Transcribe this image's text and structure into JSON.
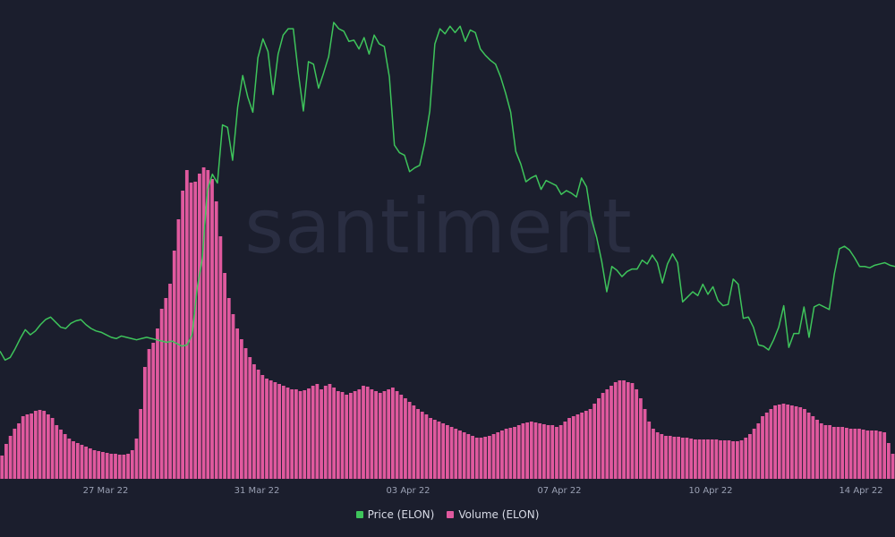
{
  "chart_data": {
    "type": "line+bar",
    "title": "",
    "watermark": "santiment",
    "x_ticks": [
      "27 Mar 22",
      "31 Mar 22",
      "03 Apr 22",
      "07 Apr 22",
      "10 Apr 22",
      "14 Apr 22"
    ],
    "x_range": [
      "24 Mar 22",
      "15 Apr 22"
    ],
    "grid": false,
    "legend_position": "bottom-center",
    "colors": {
      "background": "#1b1e2d",
      "price": "#3ec45b",
      "volume": "#e0599e"
    },
    "series": [
      {
        "name": "Price (ELON)",
        "kind": "line",
        "scale": "relative",
        "values": [
          45,
          38,
          40,
          47,
          55,
          62,
          58,
          61,
          66,
          70,
          72,
          68,
          64,
          63,
          67,
          69,
          70,
          66,
          63,
          61,
          60,
          58,
          56,
          55,
          57,
          56,
          55,
          54,
          55,
          56,
          55,
          54,
          53,
          52,
          53,
          51,
          49,
          50,
          58,
          95,
          118,
          172,
          185,
          178,
          224,
          222,
          196,
          238,
          263,
          246,
          234,
          277,
          292,
          282,
          248,
          280,
          295,
          300,
          300,
          265,
          235,
          274,
          272,
          253,
          265,
          278,
          305,
          300,
          298,
          290,
          291,
          284,
          293,
          280,
          295,
          288,
          286,
          262,
          208,
          202,
          200,
          187,
          190,
          192,
          210,
          235,
          288,
          300,
          296,
          302,
          297,
          302,
          290,
          299,
          297,
          284,
          279,
          275,
          272,
          262,
          249,
          234,
          203,
          193,
          179,
          182,
          184,
          173,
          180,
          178,
          176,
          169,
          172,
          170,
          167,
          182,
          175,
          149,
          135,
          116,
          92,
          112,
          109,
          104,
          108,
          110,
          110,
          117,
          114,
          121,
          115,
          99,
          114,
          122,
          115,
          84,
          88,
          92,
          89,
          98,
          90,
          96,
          85,
          81,
          82,
          102,
          98,
          71,
          72,
          64,
          50,
          49,
          46,
          54,
          64,
          81,
          48,
          59,
          59,
          80,
          56,
          80,
          82,
          80,
          78,
          106,
          126,
          128,
          125,
          119,
          112,
          112,
          111,
          113,
          114,
          115,
          113,
          112
        ],
        "note": "relative price level (axis not labeled in original)"
      },
      {
        "name": "Volume (ELON)",
        "kind": "bar",
        "scale": "relative",
        "values": [
          26,
          39,
          48,
          56,
          62,
          70,
          72,
          73,
          76,
          77,
          76,
          72,
          68,
          60,
          55,
          50,
          45,
          42,
          40,
          38,
          36,
          34,
          32,
          31,
          30,
          29,
          28,
          28,
          27,
          27,
          28,
          32,
          45,
          78,
          125,
          145,
          152,
          168,
          190,
          202,
          218,
          255,
          290,
          322,
          345,
          331,
          332,
          341,
          348,
          345,
          335,
          310,
          271,
          230,
          202,
          184,
          168,
          156,
          146,
          136,
          128,
          122,
          116,
          112,
          110,
          108,
          106,
          104,
          102,
          100,
          100,
          98,
          99,
          101,
          104,
          106,
          100,
          104,
          106,
          102,
          98,
          97,
          94,
          96,
          98,
          100,
          104,
          103,
          100,
          98,
          96,
          98,
          100,
          102,
          98,
          94,
          90,
          86,
          82,
          78,
          75,
          72,
          68,
          66,
          64,
          62,
          60,
          58,
          56,
          54,
          52,
          50,
          48,
          46,
          46,
          47,
          48,
          50,
          52,
          54,
          56,
          57,
          58,
          60,
          62,
          63,
          64,
          63,
          62,
          61,
          60,
          60,
          58,
          60,
          64,
          68,
          70,
          72,
          74,
          76,
          78,
          84,
          90,
          96,
          100,
          104,
          108,
          110,
          110,
          108,
          107,
          100,
          90,
          78,
          64,
          56,
          52,
          50,
          48,
          48,
          47,
          47,
          46,
          46,
          45,
          44,
          44,
          44,
          44,
          44,
          44,
          43,
          43,
          43,
          42,
          42,
          43,
          46,
          50,
          56,
          62,
          70,
          74,
          78,
          82,
          83,
          84,
          83,
          82,
          81,
          80,
          78,
          74,
          70,
          66,
          62,
          60,
          60,
          58,
          58,
          58,
          57,
          56,
          56,
          56,
          55,
          54,
          54,
          54,
          53,
          52,
          40,
          28
        ]
      }
    ]
  },
  "legend": {
    "items": [
      {
        "label": "Price (ELON)",
        "color": "#3ec45b"
      },
      {
        "label": "Volume (ELON)",
        "color": "#e0599e"
      }
    ]
  }
}
